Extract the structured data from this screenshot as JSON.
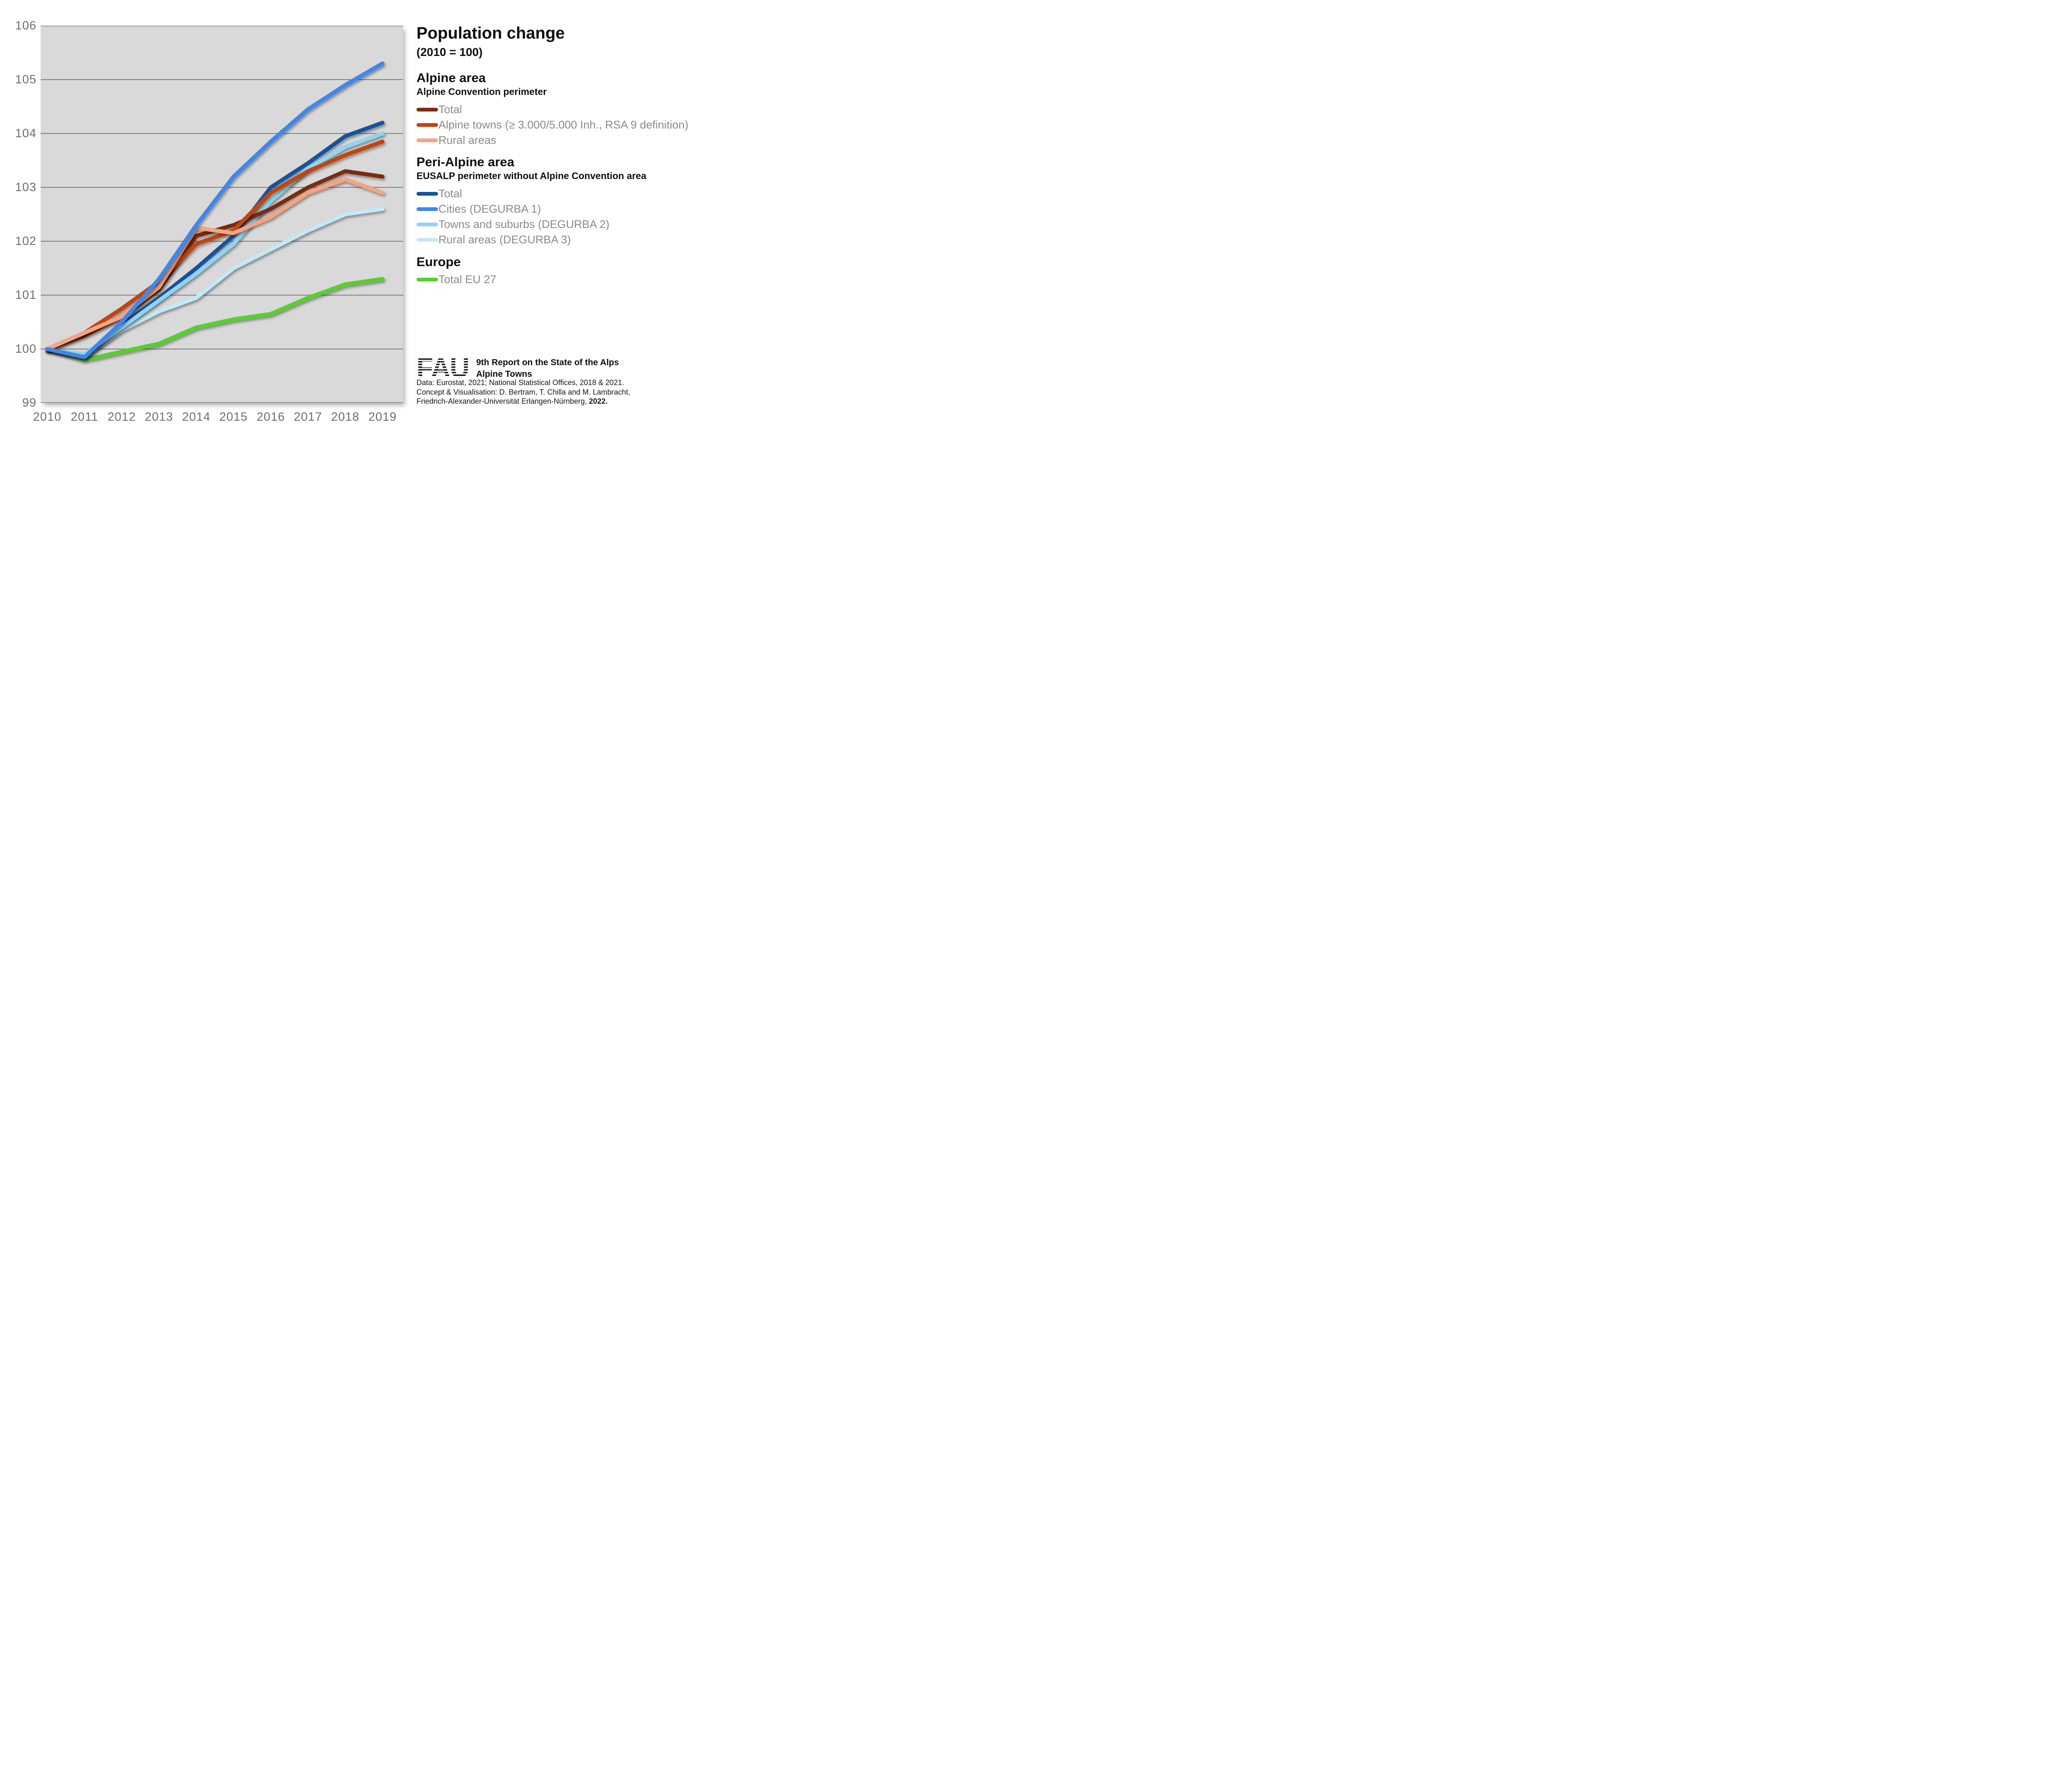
{
  "title": "Population change",
  "subtitle": "(2010 = 100)",
  "legend": {
    "alpine": {
      "header": "Alpine area",
      "subheader": "Alpine Convention perimeter",
      "items": [
        {
          "label": "Total",
          "color": "#7b2b0d"
        },
        {
          "label": "Alpine towns (≥ 3.000/5.000 Inh., RSA 9 definition)",
          "color": "#c2440f"
        },
        {
          "label": "Rural areas",
          "color": "#f7a380"
        }
      ]
    },
    "peri": {
      "header": "Peri-Alpine area",
      "subheader": "EUSALP perimeter without Alpine Convention area",
      "items": [
        {
          "label": "Total",
          "color": "#15539e"
        },
        {
          "label": "Cities (DEGURBA 1)",
          "color": "#3d87ef"
        },
        {
          "label": "Towns and suburbs (DEGURBA 2)",
          "color": "#8fd4f4"
        },
        {
          "label": "Rural areas (DEGURBA 3)",
          "color": "#c3e9f8"
        }
      ]
    },
    "europe": {
      "header": "Europe",
      "items": [
        {
          "label": "Total EU 27",
          "color": "#57d02b"
        }
      ]
    }
  },
  "footer": {
    "logo_text": "FAU",
    "report_line1": "9th Report on the State of the Alps",
    "report_line2": "Alpine Towns",
    "credit_line1": "Data: Eurostat, 2021; National Statistical Offices, 2018 & 2021.",
    "credit_line2": "Concept & Visualisation: D. Bertram, T. Chilla and M. Lambracht,",
    "credit_line3_normal": "Friedrich-Alexander-Universität Erlangen-Nürnberg, ",
    "credit_line3_bold": "2022."
  },
  "chart_data": {
    "type": "line",
    "title": "Population change (2010 = 100)",
    "categories": [
      "2010",
      "2011",
      "2012",
      "2013",
      "2014",
      "2015",
      "2016",
      "2017",
      "2018",
      "2019"
    ],
    "ylim": [
      99,
      106
    ],
    "yticks": [
      99,
      100,
      101,
      102,
      103,
      104,
      105,
      106
    ],
    "grid": "horizontal",
    "legend_position": "right",
    "plot_bg": "#d9d9d9",
    "gridline_color": "#7e7e7e",
    "series": [
      {
        "name": "Total EU 27",
        "group": "Europe",
        "color": "#57d02b",
        "values": [
          100,
          99.8,
          99.95,
          100.1,
          100.4,
          100.55,
          100.65,
          100.95,
          101.2,
          101.3
        ]
      },
      {
        "name": "Rural areas (DEGURBA 3)",
        "group": "Peri-Alpine area",
        "color": "#c3e9f8",
        "values": [
          100,
          99.85,
          100.35,
          100.7,
          100.95,
          101.5,
          101.85,
          102.2,
          102.5,
          102.6
        ]
      },
      {
        "name": "Total",
        "group": "Peri-Alpine area",
        "color": "#15539e",
        "values": [
          100,
          99.85,
          100.45,
          100.95,
          101.5,
          102.1,
          103.0,
          103.45,
          103.95,
          104.2
        ]
      },
      {
        "name": "Towns and suburbs (DEGURBA 2)",
        "group": "Peri-Alpine area",
        "color": "#8fd4f4",
        "values": [
          100,
          99.9,
          100.4,
          100.9,
          101.4,
          101.95,
          102.75,
          103.35,
          103.75,
          104.0
        ]
      },
      {
        "name": "Total",
        "group": "Alpine area",
        "color": "#7b2b0d",
        "values": [
          100,
          100.25,
          100.6,
          101.1,
          102.1,
          102.3,
          102.6,
          103.0,
          103.3,
          103.2
        ]
      },
      {
        "name": "Alpine towns (≥ 3.000/5.000 Inh., RSA 9 definition)",
        "group": "Alpine area",
        "color": "#c2440f",
        "values": [
          100,
          100.3,
          100.75,
          101.25,
          101.95,
          102.2,
          102.9,
          103.3,
          103.6,
          103.85
        ]
      },
      {
        "name": "Rural areas",
        "group": "Alpine area",
        "color": "#f7a380",
        "values": [
          100,
          100.3,
          100.6,
          101.15,
          102.25,
          102.15,
          102.45,
          102.9,
          103.15,
          102.9
        ]
      },
      {
        "name": "Cities (DEGURBA 1)",
        "group": "Peri-Alpine area",
        "color": "#3d87ef",
        "values": [
          100,
          99.85,
          100.5,
          101.3,
          102.3,
          103.2,
          103.85,
          104.45,
          104.9,
          105.3
        ]
      }
    ]
  }
}
